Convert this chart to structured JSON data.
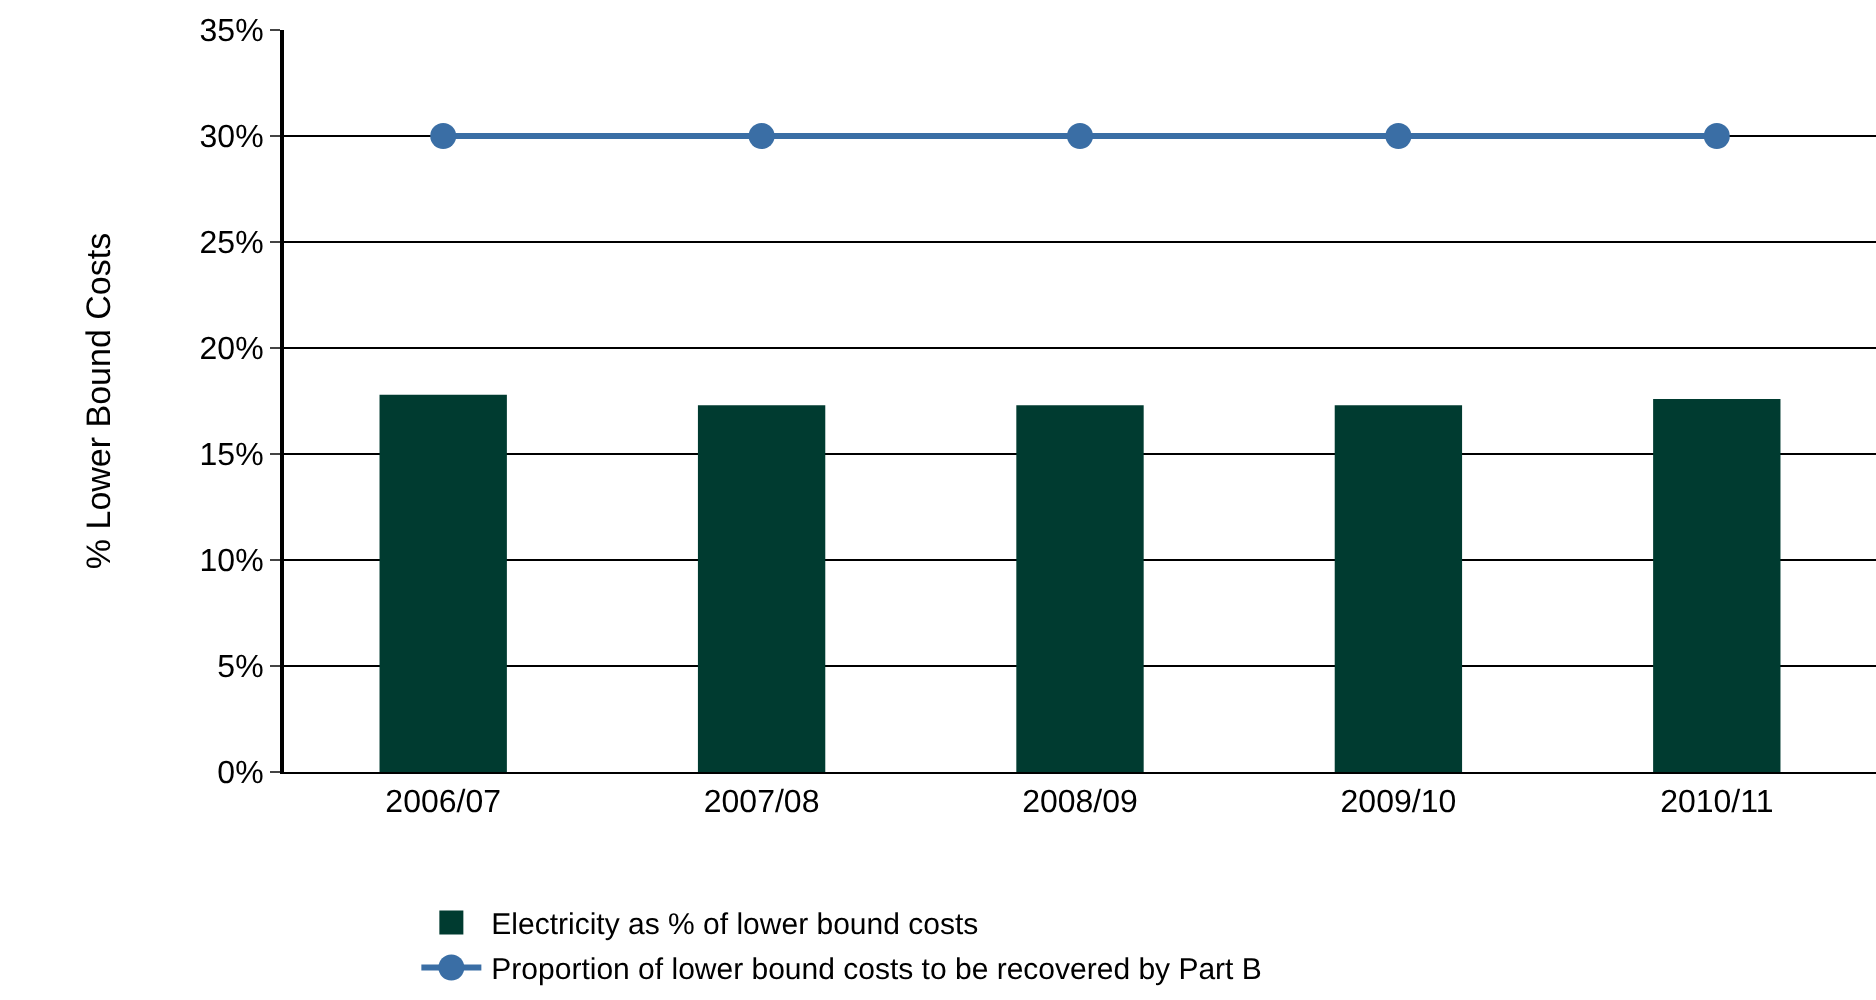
{
  "chart_data": {
    "type": "bar",
    "ylabel": "% Lower Bound Costs",
    "categories": [
      "2006/07",
      "2007/08",
      "2008/09",
      "2009/10",
      "2010/11"
    ],
    "series": [
      {
        "name": "Electricity as % of lower bound costs",
        "color": "#003b30",
        "values": [
          17.8,
          17.3,
          17.3,
          17.3,
          17.6
        ]
      },
      {
        "name": "Proportion of lower bound costs to be recovered by Part B",
        "type": "line",
        "color": "#3a6ea5",
        "values": [
          30,
          30,
          30,
          30,
          30
        ]
      }
    ],
    "ylim": [
      0,
      35
    ],
    "yticks": [
      {
        "value": 0,
        "label": "0%"
      },
      {
        "value": 5,
        "label": "5%"
      },
      {
        "value": 10,
        "label": "10%"
      },
      {
        "value": 15,
        "label": "15%"
      },
      {
        "value": 20,
        "label": "20%"
      },
      {
        "value": 25,
        "label": "25%"
      },
      {
        "value": 30,
        "label": "30%"
      },
      {
        "value": 35,
        "label": "35%"
      }
    ],
    "grid": "y",
    "legend": "bottom",
    "marker": "circle",
    "line_style": "solid"
  }
}
